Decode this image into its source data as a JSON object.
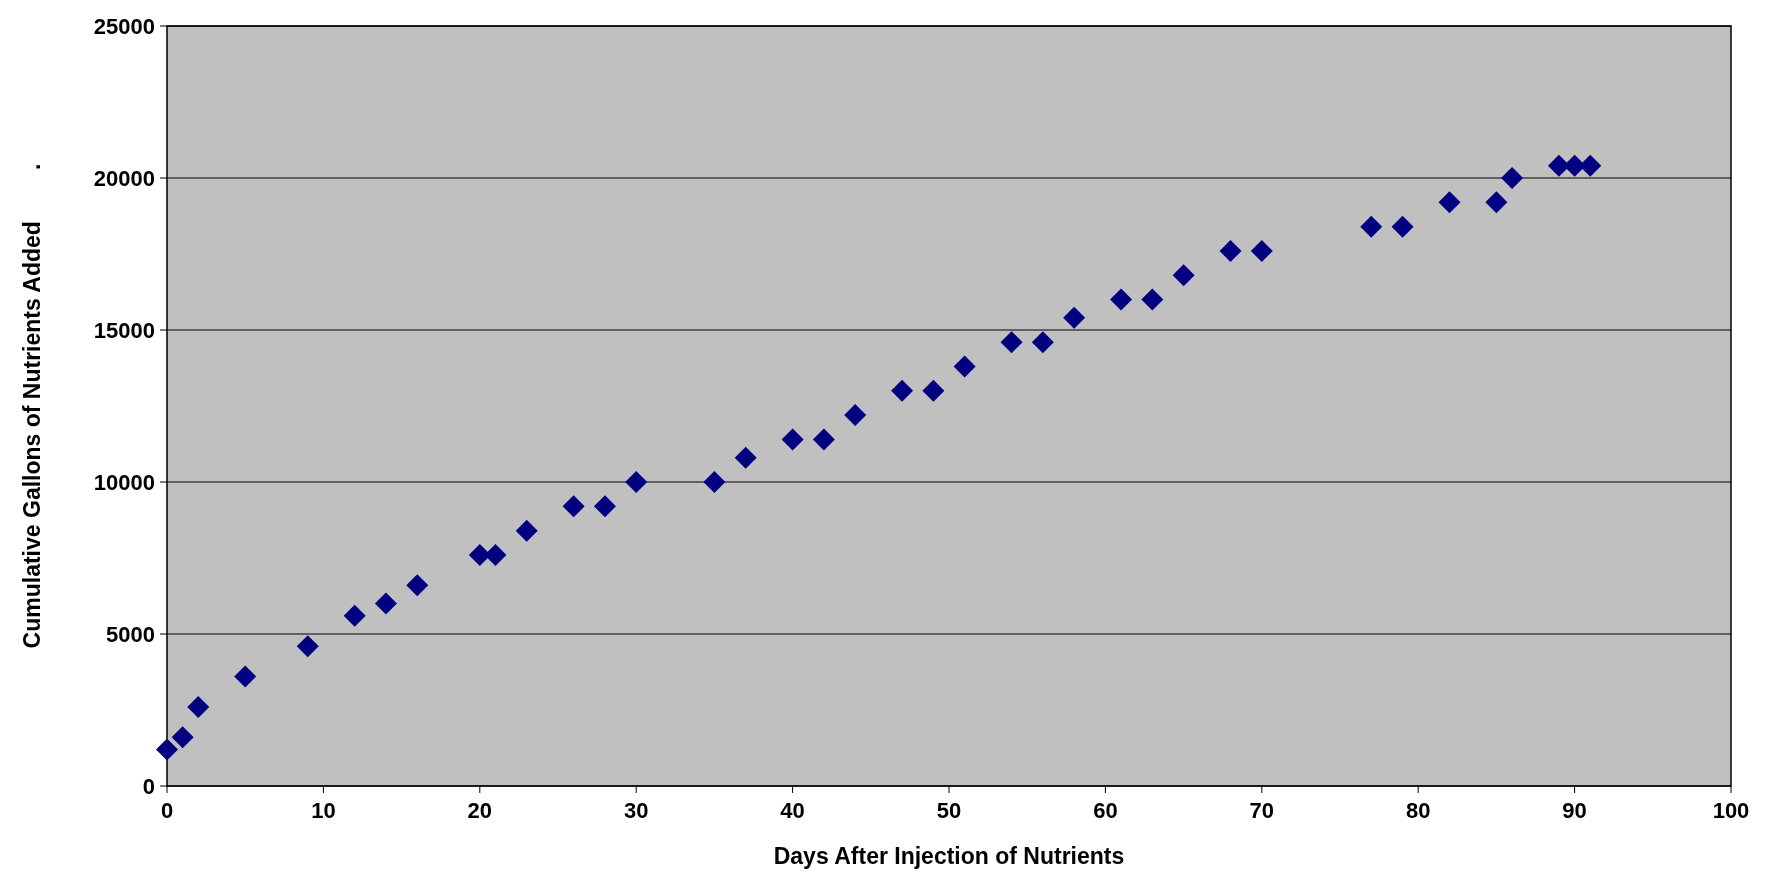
{
  "chart_data": {
    "type": "scatter",
    "xlabel": "Days After Injection of Nutrients",
    "ylabel": "Cumulative Gallons of Nutrients Added        .",
    "x": [
      0,
      1,
      2,
      5,
      9,
      12,
      14,
      16,
      20,
      21,
      23,
      26,
      28,
      30,
      35,
      37,
      40,
      42,
      44,
      47,
      49,
      51,
      54,
      56,
      58,
      61,
      63,
      65,
      68,
      70,
      77,
      79,
      82,
      85,
      86,
      89,
      90,
      91
    ],
    "series": [
      {
        "color": "#000080",
        "values": [
          1200,
          1600,
          2600,
          3600,
          4600,
          5600,
          6000,
          6600,
          7600,
          7600,
          8400,
          9200,
          9200,
          10000,
          10000,
          10800,
          11400,
          11400,
          12200,
          13000,
          13000,
          13800,
          14600,
          14600,
          15400,
          16000,
          16000,
          16800,
          17600,
          17600,
          18400,
          18400,
          19200,
          19200,
          20000,
          20400,
          20400,
          20400
        ]
      }
    ],
    "xlim": [
      0,
      100
    ],
    "xticks": [
      0,
      10,
      20,
      30,
      40,
      50,
      60,
      70,
      80,
      90,
      100
    ],
    "ylim": [
      0,
      25000
    ],
    "yticks": [
      0,
      5000,
      10000,
      15000,
      20000,
      25000
    ],
    "grid": "y",
    "marker": "diamond"
  }
}
